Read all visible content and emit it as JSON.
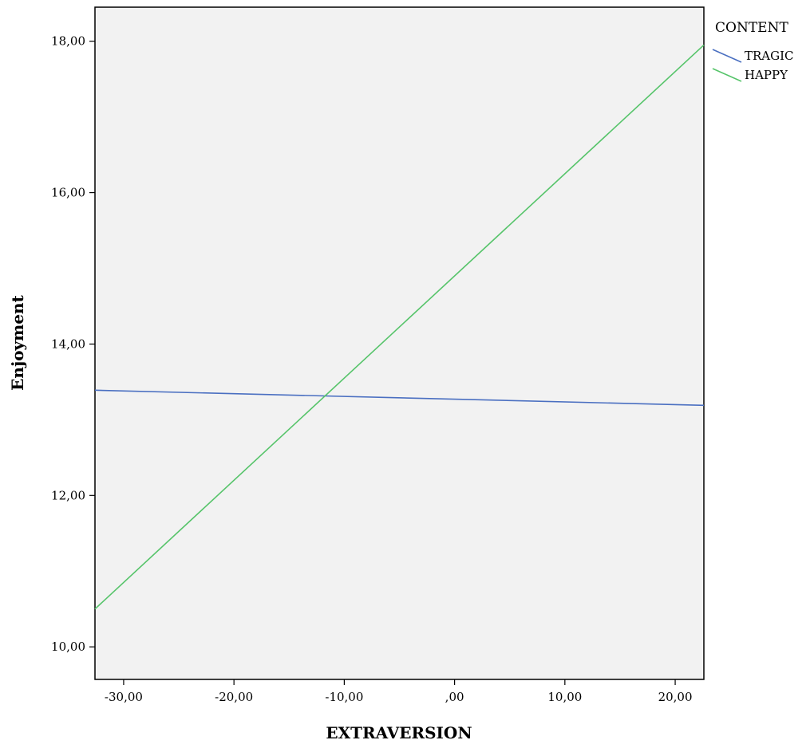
{
  "chart_data": {
    "type": "line",
    "xlabel": "EXTRAVERSION",
    "ylabel": "Enjoyment",
    "xlim": [
      -32.6,
      22.6
    ],
    "ylim": [
      9.57,
      18.45
    ],
    "x_ticks": [
      -30,
      -20,
      -10,
      0,
      10,
      20
    ],
    "x_tick_labels": [
      "-30,00",
      "-20,00",
      "-10,00",
      ",00",
      "10,00",
      "20,00"
    ],
    "y_ticks": [
      10,
      12,
      14,
      16,
      18
    ],
    "y_tick_labels": [
      "10,00",
      "12,00",
      "14,00",
      "16,00",
      "18,00"
    ],
    "grid": false,
    "plot_background": "#f2f2f2",
    "legend": {
      "title": "CONTENT",
      "placement": "right"
    },
    "series": [
      {
        "name": "TRAGIC",
        "color": "#4a6fc1",
        "x": [
          -32.6,
          22.6
        ],
        "y": [
          13.39,
          13.19
        ]
      },
      {
        "name": "HAPPY",
        "color": "#56c46a",
        "x": [
          -32.6,
          22.6
        ],
        "y": [
          10.5,
          17.95
        ]
      }
    ]
  }
}
